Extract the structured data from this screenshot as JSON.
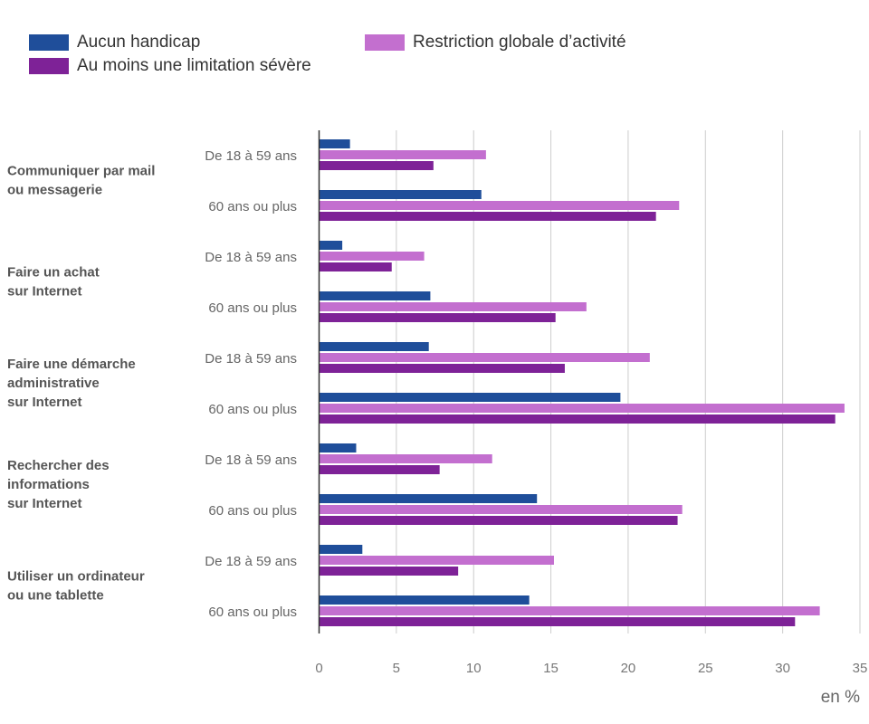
{
  "chart_data": {
    "type": "bar",
    "orientation": "horizontal",
    "xlabel": "en %",
    "xlim": [
      0,
      35
    ],
    "xticks": [
      0,
      5,
      10,
      15,
      20,
      25,
      30,
      35
    ],
    "grid": true,
    "legend_position": "top-left",
    "series": [
      {
        "name": "Aucun handicap",
        "color": "#1f4e9a"
      },
      {
        "name": "Restriction globale d’activité",
        "color": "#c36fcf"
      },
      {
        "name": "Au moins une limitation sévère",
        "color": "#7e2297"
      }
    ],
    "groups": [
      {
        "label_lines": [
          "Communiquer par mail",
          "ou messagerie"
        ],
        "rows": [
          {
            "label": "De 18 à 59 ans",
            "values": [
              2.0,
              10.8,
              7.4
            ]
          },
          {
            "label": "60 ans ou plus",
            "values": [
              10.5,
              23.3,
              21.8
            ]
          }
        ]
      },
      {
        "label_lines": [
          "Faire un achat",
          "sur Internet"
        ],
        "rows": [
          {
            "label": "De 18 à 59 ans",
            "values": [
              1.5,
              6.8,
              4.7
            ]
          },
          {
            "label": "60 ans ou plus",
            "values": [
              7.2,
              17.3,
              15.3
            ]
          }
        ]
      },
      {
        "label_lines": [
          "Faire une démarche",
          "administrative",
          "sur Internet"
        ],
        "rows": [
          {
            "label": "De 18 à 59 ans",
            "values": [
              7.1,
              21.4,
              15.9
            ]
          },
          {
            "label": "60 ans ou plus",
            "values": [
              19.5,
              34.0,
              33.4
            ]
          }
        ]
      },
      {
        "label_lines": [
          "Rechercher des",
          "informations",
          "sur Internet"
        ],
        "rows": [
          {
            "label": "De 18 à 59 ans",
            "values": [
              2.4,
              11.2,
              7.8
            ]
          },
          {
            "label": "60 ans ou plus",
            "values": [
              14.1,
              23.5,
              23.2
            ]
          }
        ]
      },
      {
        "label_lines": [
          "Utiliser un ordinateur",
          "ou une tablette"
        ],
        "rows": [
          {
            "label": "De 18 à 59 ans",
            "values": [
              2.8,
              15.2,
              9.0
            ]
          },
          {
            "label": "60 ans ou plus",
            "values": [
              13.6,
              32.4,
              30.8
            ]
          }
        ]
      }
    ]
  }
}
